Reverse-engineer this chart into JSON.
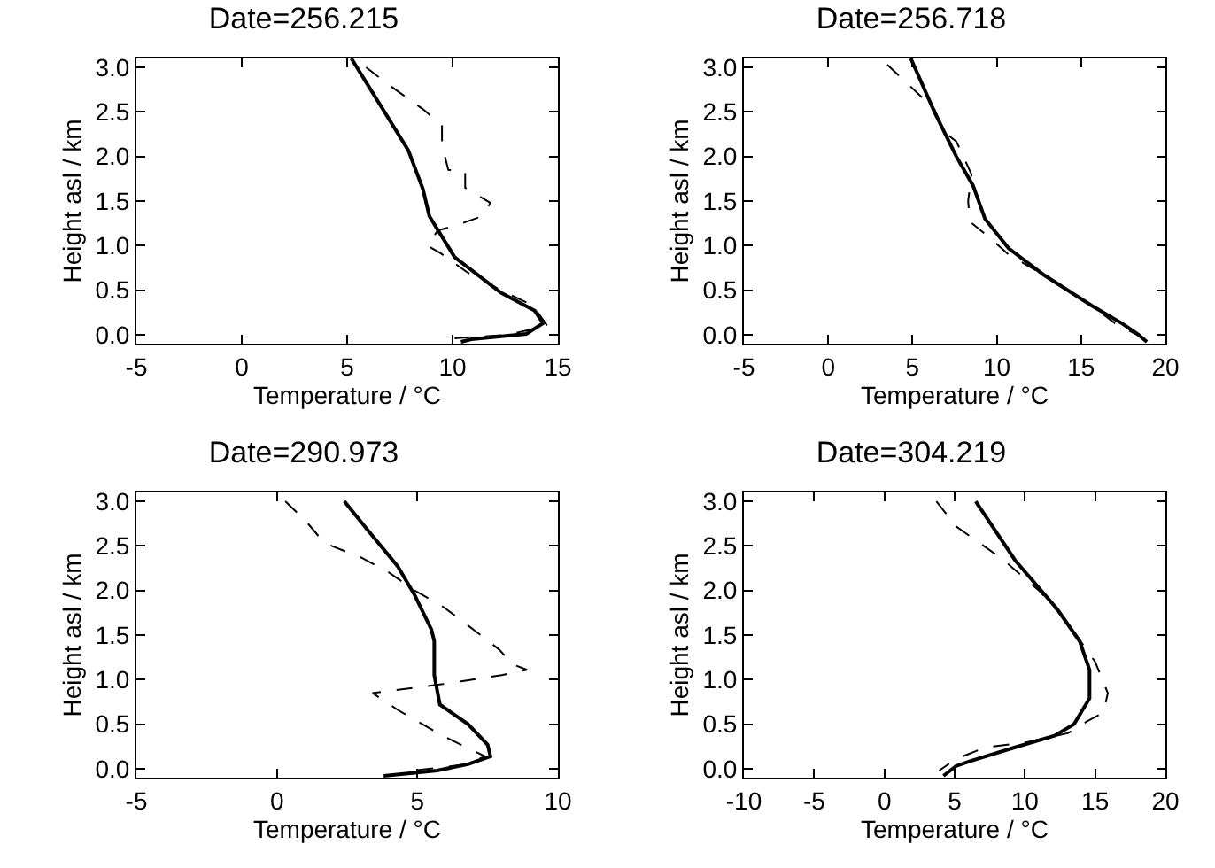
{
  "chart_data": [
    {
      "type": "line",
      "title": "Date=256.215",
      "xlabel": "Temperature / °C",
      "ylabel": "Height asl / km",
      "xlim": [
        -5,
        15
      ],
      "xticks": [
        -5,
        0,
        5,
        10,
        15
      ],
      "ylim": [
        -0.1,
        3.1
      ],
      "yticks": [
        {
          "value": 0,
          "label": "0.0"
        },
        0.5,
        {
          "value": 1,
          "label": "1.0"
        },
        1.5,
        {
          "value": 2,
          "label": "2.0"
        },
        2.5,
        {
          "value": 3,
          "label": "3.0"
        }
      ],
      "grid": false,
      "marker": "none",
      "series": [
        {
          "color": "#000000",
          "line_style": "solid",
          "x": [
            5.2,
            7.9,
            8.6,
            8.9,
            10.1,
            12.3,
            13.9,
            14.3,
            13.5,
            10.9,
            10.4
          ],
          "values": [
            3.1,
            2.07,
            1.63,
            1.33,
            0.87,
            0.47,
            0.27,
            0.13,
            0.01,
            -0.05,
            -0.08
          ]
        },
        {
          "color": "#000000",
          "line_style": "dashed",
          "x": [
            5.9,
            7.0,
            8.6,
            9.5,
            9.5,
            9.8,
            10.6,
            10.6,
            11.8,
            11.4,
            10.2,
            9.3,
            8.8,
            9.4,
            10.7,
            12.3,
            13.8,
            14.5,
            12.6,
            10.1
          ],
          "values": [
            3.0,
            2.8,
            2.53,
            2.35,
            2.13,
            1.85,
            1.83,
            1.65,
            1.48,
            1.33,
            1.23,
            1.17,
            1.0,
            0.92,
            0.7,
            0.5,
            0.33,
            0.1,
            0.0,
            -0.04
          ]
        }
      ]
    },
    {
      "type": "line",
      "title": "Date=256.718",
      "xlabel": "Temperature / °C",
      "ylabel": "Height asl / km",
      "xlim": [
        -5,
        20
      ],
      "xticks": [
        -5,
        0,
        5,
        10,
        15,
        20
      ],
      "ylim": [
        -0.1,
        3.1
      ],
      "yticks": [
        {
          "value": 0,
          "label": "0.0"
        },
        0.5,
        {
          "value": 1,
          "label": "1.0"
        },
        1.5,
        {
          "value": 2,
          "label": "2.0"
        },
        2.5,
        {
          "value": 3,
          "label": "3.0"
        }
      ],
      "grid": false,
      "marker": "none",
      "series": [
        {
          "color": "#000000",
          "line_style": "solid",
          "x": [
            4.9,
            6.3,
            7.6,
            8.6,
            9.3,
            10.7,
            12.8,
            15.6,
            17.4,
            18.4,
            18.9
          ],
          "values": [
            3.1,
            2.5,
            2.0,
            1.67,
            1.3,
            0.97,
            0.67,
            0.33,
            0.13,
            0.0,
            -0.08
          ]
        },
        {
          "color": "#000000",
          "line_style": "dashed",
          "x": [
            3.5,
            4.8,
            6.3,
            6.9,
            7.6,
            8.5,
            8.3,
            8.4,
            9.7,
            10.7,
            12.8,
            15.6,
            17.0,
            18.6
          ],
          "values": [
            3.03,
            2.8,
            2.53,
            2.27,
            2.17,
            1.8,
            1.5,
            1.27,
            1.07,
            0.9,
            0.67,
            0.33,
            0.13,
            -0.03
          ]
        }
      ]
    },
    {
      "type": "line",
      "title": "Date=290.973",
      "xlabel": "Temperature / °C",
      "ylabel": "Height asl / km",
      "xlim": [
        -5,
        10
      ],
      "xticks": [
        -5,
        0,
        5,
        10
      ],
      "ylim": [
        -0.1,
        3.1
      ],
      "yticks": [
        {
          "value": 0,
          "label": "0.0"
        },
        0.5,
        {
          "value": 1,
          "label": "1.0"
        },
        1.5,
        {
          "value": 2,
          "label": "2.0"
        },
        2.5,
        {
          "value": 3,
          "label": "3.0"
        }
      ],
      "grid": false,
      "marker": "none",
      "series": [
        {
          "color": "#000000",
          "line_style": "solid",
          "x": [
            2.4,
            3.2,
            4.3,
            4.9,
            5.5,
            5.6,
            5.6,
            5.8,
            6.8,
            7.5,
            7.6,
            6.8,
            5.7,
            3.8
          ],
          "values": [
            3.0,
            2.69,
            2.27,
            1.95,
            1.56,
            1.43,
            1.05,
            0.72,
            0.5,
            0.27,
            0.14,
            0.05,
            -0.02,
            -0.08
          ]
        },
        {
          "color": "#000000",
          "line_style": "dashed",
          "x": [
            0.3,
            1.0,
            1.7,
            3.0,
            4.0,
            4.9,
            5.9,
            7.0,
            7.9,
            8.4,
            8.9,
            8.0,
            5.9,
            3.4,
            4.3,
            5.9,
            7.4,
            6.8,
            4.9
          ],
          "values": [
            3.0,
            2.79,
            2.53,
            2.37,
            2.2,
            2.0,
            1.82,
            1.56,
            1.34,
            1.17,
            1.11,
            1.05,
            0.95,
            0.85,
            0.66,
            0.37,
            0.14,
            0.05,
            -0.02
          ]
        }
      ]
    },
    {
      "type": "line",
      "title": "Date=304.219",
      "xlabel": "Temperature / °C",
      "ylabel": "Height asl / km",
      "xlim": [
        -10,
        20
      ],
      "xticks": [
        -10,
        -5,
        0,
        5,
        10,
        15,
        20
      ],
      "ylim": [
        -0.1,
        3.1
      ],
      "yticks": [
        {
          "value": 0,
          "label": "0.0"
        },
        0.5,
        {
          "value": 1,
          "label": "1.0"
        },
        1.5,
        {
          "value": 2,
          "label": "2.0"
        },
        2.5,
        {
          "value": 3,
          "label": "3.0"
        }
      ],
      "grid": false,
      "marker": "none",
      "series": [
        {
          "color": "#000000",
          "line_style": "solid",
          "x": [
            6.5,
            9.3,
            12.3,
            13.9,
            14.6,
            14.6,
            13.5,
            12.1,
            9.3,
            6.0,
            5.1,
            4.2
          ],
          "values": [
            3.0,
            2.34,
            1.79,
            1.43,
            1.11,
            0.79,
            0.5,
            0.37,
            0.24,
            0.08,
            0.03,
            -0.08
          ]
        },
        {
          "color": "#000000",
          "line_style": "dashed",
          "x": [
            3.7,
            5.1,
            8.5,
            11.0,
            13.1,
            14.1,
            15.0,
            15.9,
            15.6,
            14.4,
            13.1,
            10.2,
            7.2,
            5.1,
            3.9
          ],
          "values": [
            3.0,
            2.72,
            2.34,
            2.0,
            1.63,
            1.4,
            1.2,
            0.85,
            0.63,
            0.53,
            0.4,
            0.3,
            0.24,
            0.11,
            -0.02
          ]
        }
      ]
    }
  ]
}
